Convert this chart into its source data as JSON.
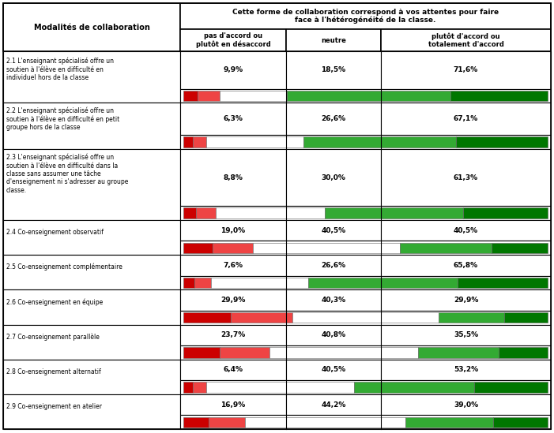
{
  "title_main": "Cette forme de collaboration correspond à vos attentes pour faire\nface à l'hétérogénéité de la classe.",
  "col1_header": "Modalités de collaboration",
  "col2_header": "pas d'accord ou\nplutôt en désaccord",
  "col3_header": "neutre",
  "col4_header": "plutôt d'accord ou\ntotalement d'accord",
  "rows": [
    {
      "label": "2.1 L'enseignant spécialisé offre un\nsoutien à l'élève en difficulté en\nindividuel hors de la classe",
      "disagree_str": "9,9%",
      "neutral_str": "18,5%",
      "agree_str": "71,6%",
      "bar": [
        4.0,
        5.9,
        18.5,
        45.0,
        26.6
      ],
      "n_label_lines": 3
    },
    {
      "label": "2.2 L'enseignant spécialisé offre un\nsoutien à l'élève en difficulté en petit\ngroupe hors de la classe",
      "disagree_str": "6,3%",
      "neutral_str": "26,6%",
      "agree_str": "67,1%",
      "bar": [
        2.5,
        3.8,
        26.6,
        42.0,
        25.1
      ],
      "n_label_lines": 3
    },
    {
      "label": "2.3 L'enseignant spécialisé offre un\nsoutien à l'élève en difficulté dans la\nclasse sans assumer une tâche\nd'enseignement ni s'adresser au groupe\nclasse.",
      "disagree_str": "8,8%",
      "neutral_str": "30,0%",
      "agree_str": "61,3%",
      "bar": [
        3.5,
        5.3,
        30.0,
        38.0,
        23.3
      ],
      "n_label_lines": 5
    },
    {
      "label": "2.4 Co-enseignement observatif",
      "disagree_str": "19,0%",
      "neutral_str": "40,5%",
      "agree_str": "40,5%",
      "bar": [
        8.0,
        11.0,
        40.5,
        25.0,
        15.5
      ],
      "n_label_lines": 1
    },
    {
      "label": "2.5 Co-enseignement complémentaire",
      "disagree_str": "7,6%",
      "neutral_str": "26,6%",
      "agree_str": "65,8%",
      "bar": [
        3.0,
        4.6,
        26.6,
        41.0,
        24.8
      ],
      "n_label_lines": 1
    },
    {
      "label": "2.6 Co-enseignement en équipe",
      "disagree_str": "29,9%",
      "neutral_str": "40,3%",
      "agree_str": "29,9%",
      "bar": [
        13.0,
        16.9,
        40.3,
        18.0,
        11.9
      ],
      "n_label_lines": 1
    },
    {
      "label": "2.7 Co-enseignement parallèle",
      "disagree_str": "23,7%",
      "neutral_str": "40,8%",
      "agree_str": "35,5%",
      "bar": [
        10.0,
        13.7,
        40.8,
        22.0,
        13.5
      ],
      "n_label_lines": 1
    },
    {
      "label": "2.8 Co-enseignement alternatif",
      "disagree_str": "6,4%",
      "neutral_str": "40,5%",
      "agree_str": "53,2%",
      "bar": [
        2.5,
        3.9,
        40.5,
        33.0,
        20.2
      ],
      "n_label_lines": 1
    },
    {
      "label": "2.9 Co-enseignement en atelier",
      "disagree_str": "16,9%",
      "neutral_str": "44,2%",
      "agree_str": "39,0%",
      "bar": [
        7.0,
        9.9,
        44.2,
        24.0,
        15.0
      ],
      "n_label_lines": 1
    }
  ],
  "colors": [
    "#cc0000",
    "#ee4444",
    "#ffffff",
    "#33aa33",
    "#007700"
  ],
  "fig_width": 7.01,
  "fig_height": 5.49,
  "dpi": 100
}
